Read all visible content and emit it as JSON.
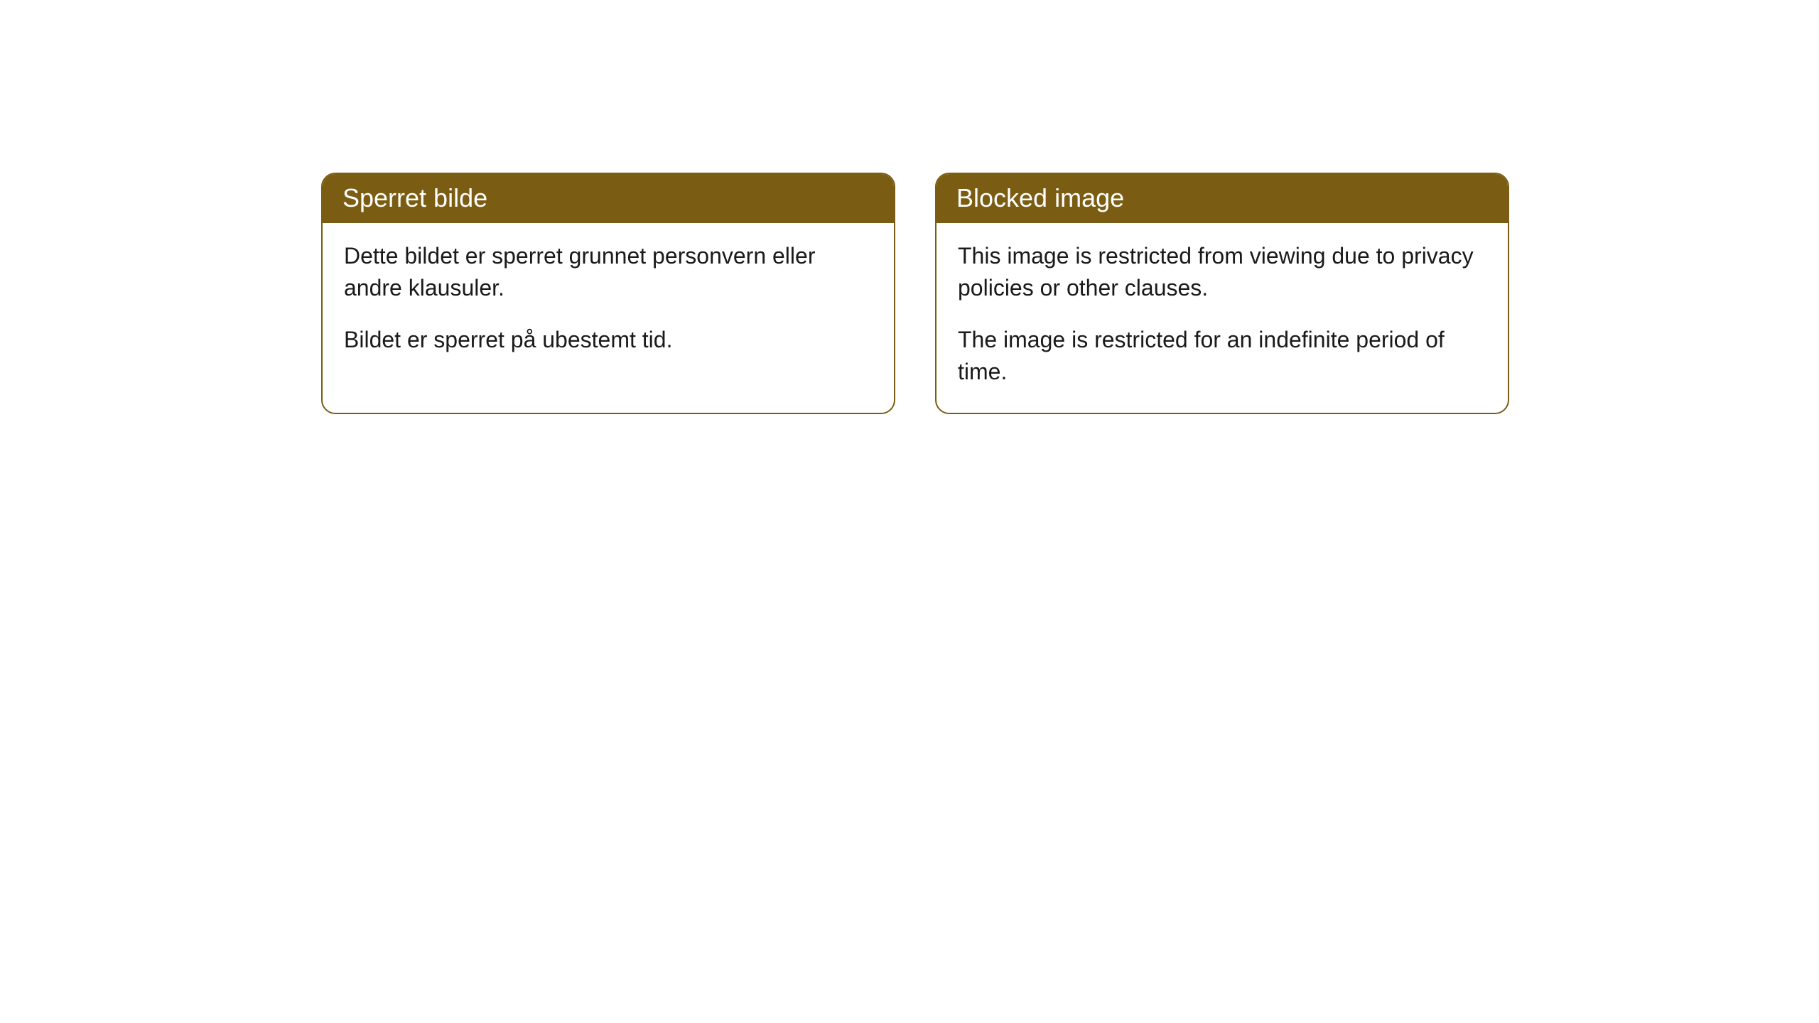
{
  "cards": [
    {
      "title": "Sperret bilde",
      "paragraph1": "Dette bildet er sperret grunnet personvern eller andre klausuler.",
      "paragraph2": "Bildet er sperret på ubestemt tid."
    },
    {
      "title": "Blocked image",
      "paragraph1": "This image is restricted from viewing due to privacy policies or other clauses.",
      "paragraph2": "The image is restricted for an indefinite period of time."
    }
  ],
  "styling": {
    "header_background": "#7a5d12",
    "header_text_color": "#ffffff",
    "border_color": "#7a5d12",
    "body_background": "#ffffff",
    "body_text_color": "#1a1a1a",
    "border_radius": 20,
    "header_fontsize": 36,
    "body_fontsize": 32
  }
}
